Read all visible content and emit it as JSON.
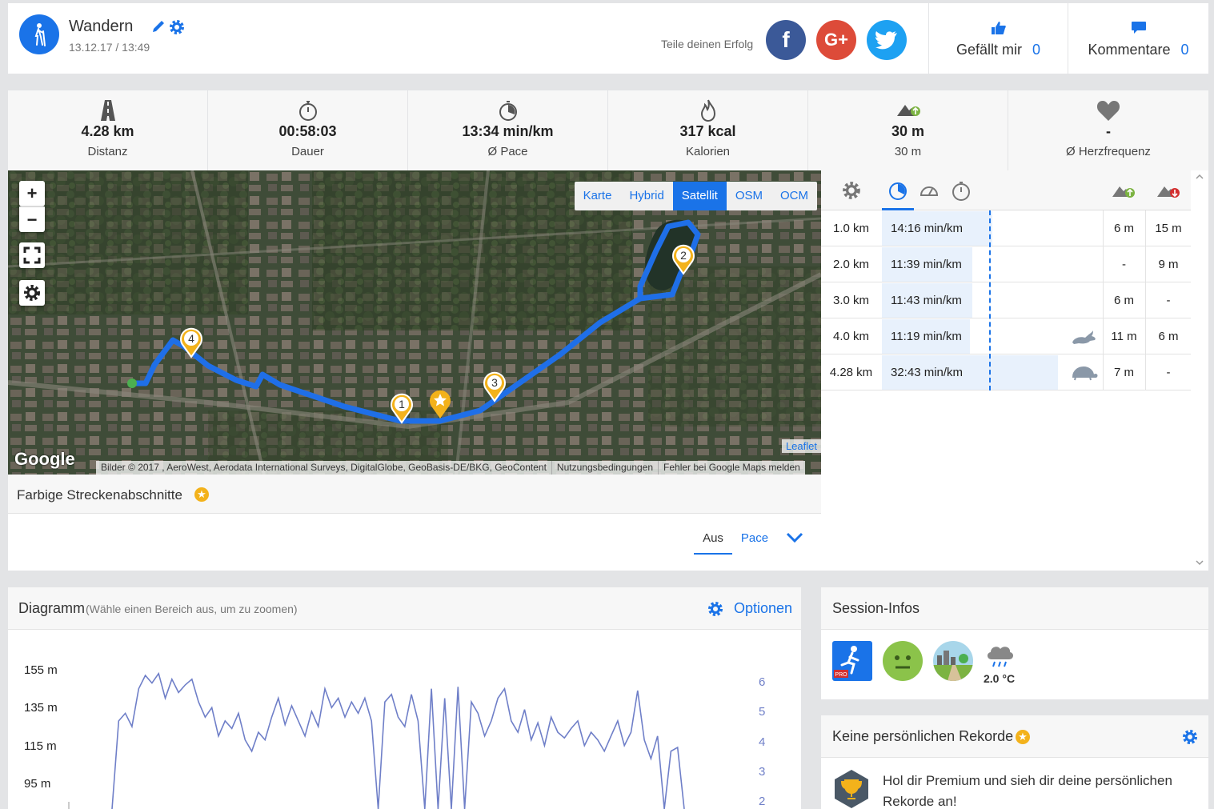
{
  "header": {
    "activity_title": "Wandern",
    "datetime": "13.12.17 / 13:49",
    "share_label": "Teile deinen Erfolg",
    "social": {
      "facebook": "f",
      "google": "G+",
      "twitter": "t"
    },
    "likes_label": "Gefällt mir",
    "likes_count": "0",
    "comments_label": "Kommentare",
    "comments_count": "0"
  },
  "stats": [
    {
      "icon": "road-icon",
      "value": "4.28 km",
      "label": "Distanz"
    },
    {
      "icon": "stopwatch-icon",
      "value": "00:58:03",
      "label": "Dauer"
    },
    {
      "icon": "pace-icon",
      "value": "13:34 min/km",
      "label": "Ø Pace"
    },
    {
      "icon": "flame-icon",
      "value": "317 kcal",
      "label": "Kalorien"
    },
    {
      "icon": "elevation-gain-icon",
      "value": "30 m",
      "label": "30 m"
    },
    {
      "icon": "heart-icon",
      "value": "-",
      "label": "Ø Herzfrequenz"
    }
  ],
  "map": {
    "zoom_in": "+",
    "zoom_out": "−",
    "types": [
      "Karte",
      "Hybrid",
      "Satellit",
      "OSM",
      "OCM"
    ],
    "active_type": "Satellit",
    "attribution": "Bilder © 2017 , AeroWest, Aerodata International Surveys, DigitalGlobe, GeoBasis-DE/BKG, GeoContent",
    "terms": "Nutzungsbedingungen",
    "report": "Fehler bei Google Maps melden",
    "leaflet": "Leaflet",
    "google": "Google",
    "markers": [
      "1",
      "2",
      "3",
      "4"
    ]
  },
  "segments": {
    "title": "Farbige Streckenabschnitte",
    "tab_off": "Aus",
    "tab_pace": "Pace"
  },
  "splits": {
    "rows": [
      {
        "km": "1.0 km",
        "pace": "14:16 min/km",
        "fraction": 0.5,
        "up": "6 m",
        "down": "15 m",
        "badge": ""
      },
      {
        "km": "2.0 km",
        "pace": "11:39 min/km",
        "fraction": 0.41,
        "up": "-",
        "down": "9 m",
        "badge": ""
      },
      {
        "km": "3.0 km",
        "pace": "11:43 min/km",
        "fraction": 0.41,
        "up": "6 m",
        "down": "-",
        "badge": ""
      },
      {
        "km": "4.0 km",
        "pace": "11:19 min/km",
        "fraction": 0.4,
        "up": "11 m",
        "down": "6 m",
        "badge": "rabbit-icon"
      },
      {
        "km": "4.28 km",
        "pace": "32:43 min/km",
        "fraction": 0.8,
        "up": "7 m",
        "down": "-",
        "badge": "turtle-icon"
      }
    ]
  },
  "diagram": {
    "title": "Diagramm",
    "hint": "(Wähle einen Bereich aus, um zu zoomen)",
    "options": "Optionen"
  },
  "chart_data": {
    "type": "line",
    "y_left_ticks": [
      "155 m",
      "135 m",
      "115 m",
      "95 m"
    ],
    "y_right_ticks": [
      "6",
      "5",
      "4",
      "3",
      "2"
    ],
    "series": [
      {
        "color": "#6f7fc8",
        "values": [
          60,
          128,
          132,
          125,
          145,
          152,
          148,
          153,
          140,
          150,
          143,
          147,
          150,
          138,
          130,
          135,
          120,
          128,
          124,
          132,
          118,
          112,
          122,
          118,
          130,
          140,
          126,
          136,
          128,
          120,
          133,
          125,
          145,
          135,
          140,
          130,
          138,
          132,
          140,
          128,
          55,
          138,
          142,
          130,
          125,
          142,
          128,
          40,
          145,
          50,
          140,
          40,
          146,
          60,
          138,
          132,
          120,
          128,
          140,
          145,
          128,
          122,
          134,
          118,
          127,
          115,
          130,
          122,
          119,
          124,
          128,
          115,
          122,
          118,
          112,
          120,
          128,
          115,
          122,
          144,
          118,
          108,
          120,
          60,
          112,
          114,
          70
        ]
      }
    ]
  },
  "session": {
    "title": "Session-Infos",
    "temperature": "2.0 °C"
  },
  "records": {
    "title": "Keine persönlichen Rekorde",
    "text_line1": "Hol dir Premium und sieh dir deine persönlichen",
    "text_line2": "Rekorde an!"
  }
}
